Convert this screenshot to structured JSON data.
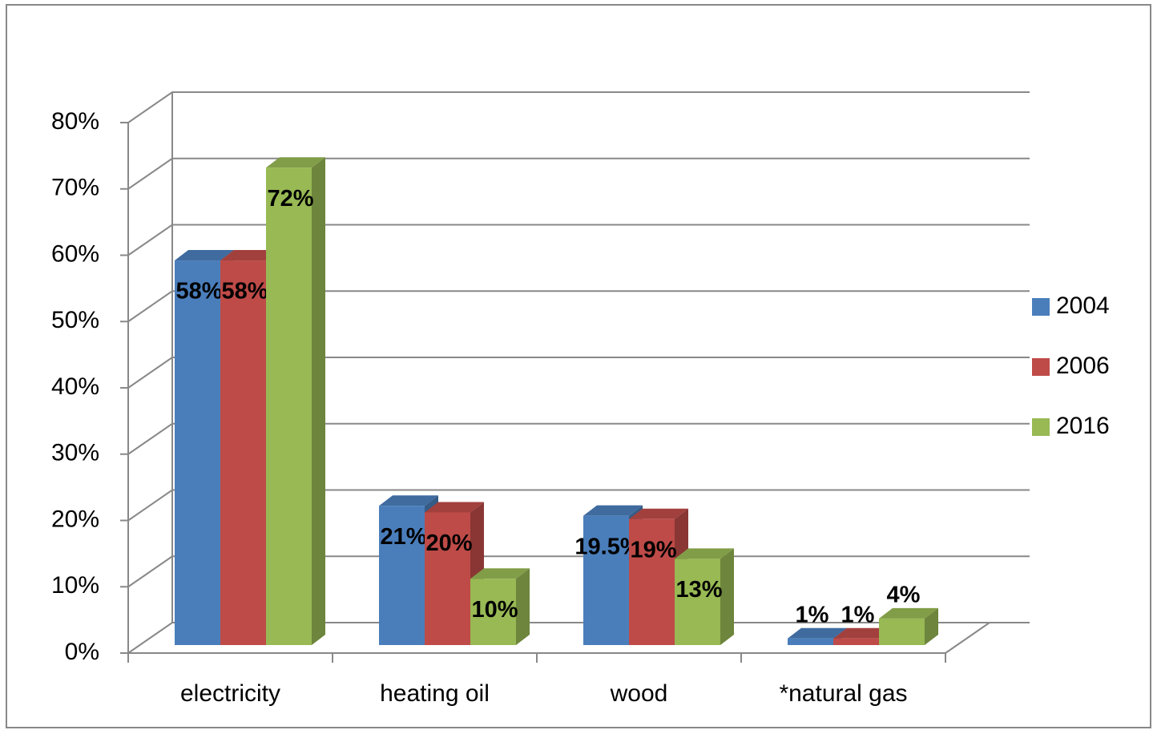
{
  "chart_data": {
    "type": "bar3d",
    "categories": [
      "electricity",
      "heating oil",
      "wood",
      "*natural gas"
    ],
    "series": [
      {
        "name": "2004",
        "color": "#4a7ebb",
        "values": [
          58,
          21,
          19.5,
          1
        ],
        "value_labels": [
          "58%",
          "21%",
          "19.5%",
          "1%"
        ]
      },
      {
        "name": "2006",
        "color": "#be4b48",
        "values": [
          58,
          20,
          19,
          1
        ],
        "value_labels": [
          "58%",
          "20%",
          "19%",
          "1%"
        ]
      },
      {
        "name": "2016",
        "color": "#98b954",
        "values": [
          72,
          10,
          13,
          4
        ],
        "value_labels": [
          "72%",
          "10%",
          "13%",
          "4%"
        ]
      }
    ],
    "ylim": [
      0,
      80
    ],
    "yticks": [
      {
        "value": 0,
        "label": "0%"
      },
      {
        "value": 10,
        "label": "10%"
      },
      {
        "value": 20,
        "label": "20%"
      },
      {
        "value": 30,
        "label": "30%"
      },
      {
        "value": 40,
        "label": "40%"
      },
      {
        "value": 50,
        "label": "50%"
      },
      {
        "value": 60,
        "label": "60%"
      },
      {
        "value": 70,
        "label": "70%"
      },
      {
        "value": 80,
        "label": "80%"
      }
    ],
    "grid": true,
    "legend": "right"
  }
}
